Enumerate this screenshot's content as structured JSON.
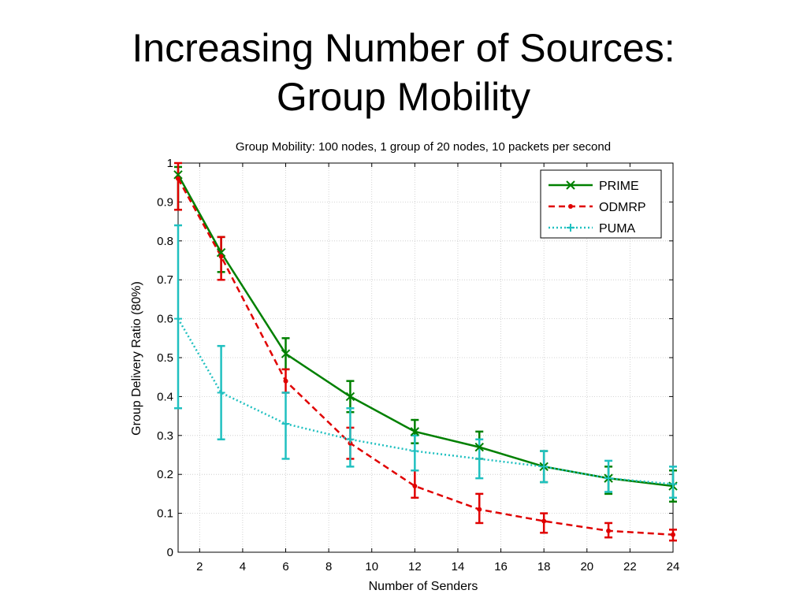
{
  "slide": {
    "title_line1": "Increasing Number of Sources:",
    "title_line2": "Group Mobility"
  },
  "chart_data": {
    "type": "line",
    "title": "Group Mobility: 100 nodes, 1 group of 20 nodes, 10 packets per second",
    "xlabel": "Number of Senders",
    "ylabel": "Group Delivery Ratio (80%)",
    "xlim": [
      1,
      24
    ],
    "ylim": [
      0,
      1
    ],
    "xticks": [
      2,
      4,
      6,
      8,
      10,
      12,
      14,
      16,
      18,
      20,
      22,
      24
    ],
    "yticks": [
      0,
      0.1,
      0.2,
      0.3,
      0.4,
      0.5,
      0.6,
      0.7,
      0.8,
      0.9,
      1
    ],
    "grid": true,
    "legend_position": "top-right",
    "x": [
      1,
      3,
      6,
      9,
      12,
      15,
      18,
      21,
      24
    ],
    "series": [
      {
        "name": "PRIME",
        "color": "#008000",
        "linestyle": "solid",
        "marker": "x",
        "values": [
          0.97,
          0.77,
          0.51,
          0.4,
          0.31,
          0.27,
          0.22,
          0.19,
          0.17
        ],
        "err_low": [
          0.88,
          0.72,
          0.47,
          0.36,
          0.28,
          0.24,
          0.18,
          0.15,
          0.13
        ],
        "err_high": [
          0.99,
          0.81,
          0.55,
          0.44,
          0.34,
          0.31,
          0.26,
          0.22,
          0.21
        ]
      },
      {
        "name": "ODMRP",
        "color": "#e00000",
        "linestyle": "dashed",
        "marker": "dot",
        "values": [
          0.96,
          0.76,
          0.44,
          0.28,
          0.17,
          0.11,
          0.08,
          0.055,
          0.045
        ],
        "err_low": [
          0.88,
          0.7,
          0.41,
          0.24,
          0.14,
          0.075,
          0.05,
          0.038,
          0.03
        ],
        "err_high": [
          1.0,
          0.81,
          0.47,
          0.32,
          0.21,
          0.15,
          0.1,
          0.075,
          0.058
        ]
      },
      {
        "name": "PUMA",
        "color": "#20c0c0",
        "linestyle": "dotted",
        "marker": "plus",
        "values": [
          0.6,
          0.41,
          0.33,
          0.29,
          0.26,
          0.24,
          0.22,
          0.19,
          0.175
        ],
        "err_low": [
          0.37,
          0.29,
          0.24,
          0.22,
          0.21,
          0.19,
          0.18,
          0.155,
          0.14
        ],
        "err_high": [
          0.84,
          0.53,
          0.41,
          0.37,
          0.3,
          0.29,
          0.26,
          0.235,
          0.22
        ]
      }
    ]
  }
}
